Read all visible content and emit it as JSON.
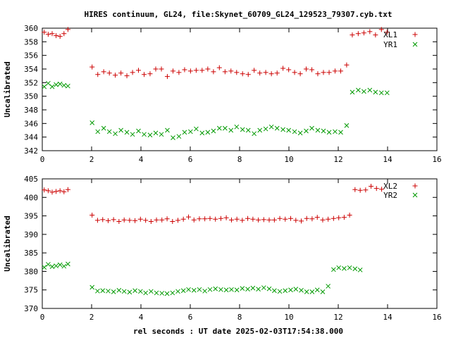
{
  "title": "HIRES continuum, GL24, file:Skynet_60709_GL24_129523_79307.cyb.txt",
  "xlabel": "rel seconds : UT date 2025-02-03T17:54:38.000",
  "colors": {
    "series1": "#cc0000",
    "series2": "#009900"
  },
  "chart_data": [
    {
      "type": "scatter",
      "ylabel": "Uncalibrated",
      "xlim": [
        0,
        16
      ],
      "ylim": [
        342,
        360
      ],
      "xticks": [
        0,
        2,
        4,
        6,
        8,
        10,
        12,
        14,
        16
      ],
      "yticks": [
        342,
        344,
        346,
        348,
        350,
        352,
        354,
        356,
        358,
        360
      ],
      "legend_position": "top-right",
      "series": [
        {
          "name": "XL1",
          "marker": "plus",
          "points": [
            [
              0.08,
              359.4
            ],
            [
              0.24,
              359.1
            ],
            [
              0.4,
              359.2
            ],
            [
              0.56,
              358.9
            ],
            [
              0.72,
              358.8
            ],
            [
              0.88,
              359.2
            ],
            [
              1.04,
              359.8
            ],
            [
              2.0,
              354.3
            ],
            [
              2.15,
              353.2
            ],
            [
              2.3,
              353.6
            ],
            [
              2.45,
              353.4
            ],
            [
              2.6,
              353.1
            ],
            [
              2.75,
              353.4
            ],
            [
              2.9,
              353.0
            ],
            [
              3.05,
              353.5
            ],
            [
              3.2,
              353.8
            ],
            [
              3.35,
              353.2
            ],
            [
              3.5,
              353.3
            ],
            [
              3.65,
              354.0
            ],
            [
              3.8,
              354.0
            ],
            [
              3.95,
              352.9
            ],
            [
              4.1,
              353.7
            ],
            [
              4.25,
              353.5
            ],
            [
              4.4,
              353.9
            ],
            [
              4.55,
              353.7
            ],
            [
              4.7,
              353.8
            ],
            [
              4.85,
              353.8
            ],
            [
              5.0,
              354.0
            ],
            [
              5.15,
              353.6
            ],
            [
              5.3,
              354.2
            ],
            [
              5.45,
              353.6
            ],
            [
              5.6,
              353.7
            ],
            [
              5.75,
              353.5
            ],
            [
              5.9,
              353.3
            ],
            [
              6.05,
              353.2
            ],
            [
              6.2,
              353.8
            ],
            [
              6.35,
              353.4
            ],
            [
              6.5,
              353.5
            ],
            [
              6.65,
              353.3
            ],
            [
              6.8,
              353.4
            ],
            [
              6.95,
              354.1
            ],
            [
              7.1,
              353.9
            ],
            [
              7.25,
              353.5
            ],
            [
              7.4,
              353.3
            ],
            [
              7.55,
              354.0
            ],
            [
              7.7,
              353.9
            ],
            [
              7.85,
              353.3
            ],
            [
              8.0,
              353.5
            ],
            [
              8.15,
              353.5
            ],
            [
              8.3,
              353.7
            ],
            [
              8.45,
              353.7
            ],
            [
              8.6,
              353.5
            ],
            [
              8.75,
              354.6
            ]
          ],
          "x_scale_note": ""
        },
        {
          "name": "YR1",
          "marker": "cross",
          "points": []
        }
      ]
    },
    {
      "type": "scatter",
      "ylabel": "Uncalibrated",
      "xlim": [
        0,
        16
      ],
      "ylim": [
        370,
        405
      ],
      "xticks": [
        0,
        2,
        4,
        6,
        8,
        10,
        12,
        14,
        16
      ],
      "yticks": [
        370,
        375,
        380,
        385,
        390,
        395,
        400,
        405
      ],
      "legend_position": "top-right",
      "series": [
        {
          "name": "XL2",
          "marker": "plus",
          "points": []
        },
        {
          "name": "YR2",
          "marker": "cross",
          "points": []
        }
      ]
    }
  ]
}
